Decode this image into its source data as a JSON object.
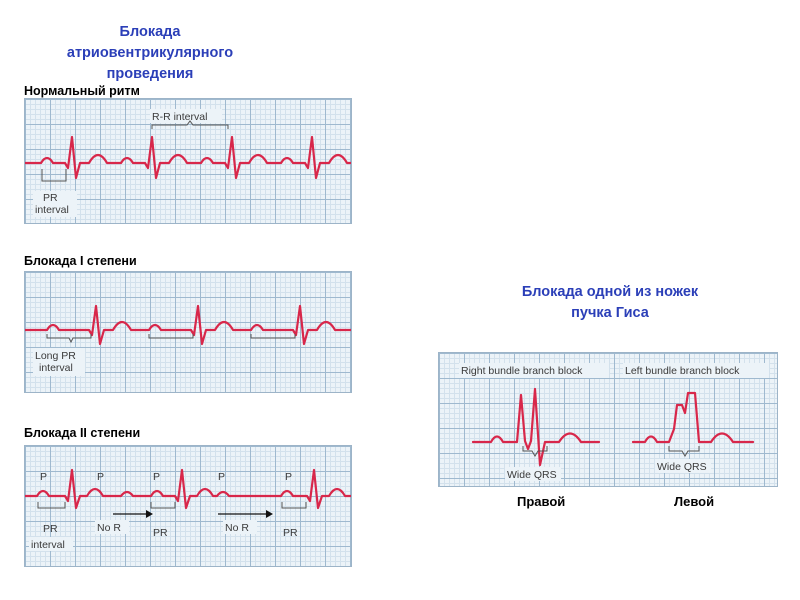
{
  "av_block": {
    "title_line1": "Блокада атриовентрикулярного",
    "title_line2": "проведения",
    "normal": {
      "label": "Нормальный ритм",
      "rr_label": "R-R interval",
      "pr_label_line1": "PR",
      "pr_label_line2": "interval"
    },
    "first_degree": {
      "label": "Блокада I степени",
      "long_pr_line1": "Long PR",
      "long_pr_line2": "interval"
    },
    "second_degree": {
      "label": "Блокада II степени",
      "p_label": "P",
      "no_r_label": "No R",
      "pr_label": "PR",
      "pr_interval_line2": "interval"
    }
  },
  "bundle_block": {
    "title_line1": "Блокада одной из ножек",
    "title_line2": "пучка Гиса",
    "right_header": "Right bundle branch block",
    "left_header": "Left bundle branch block",
    "wide_qrs": "Wide QRS",
    "right_caption": "Правой",
    "left_caption": "Левой"
  },
  "colors": {
    "title": "#2b3fb8",
    "trace": "#d8274a",
    "grid_background": "#ecf3f8"
  }
}
